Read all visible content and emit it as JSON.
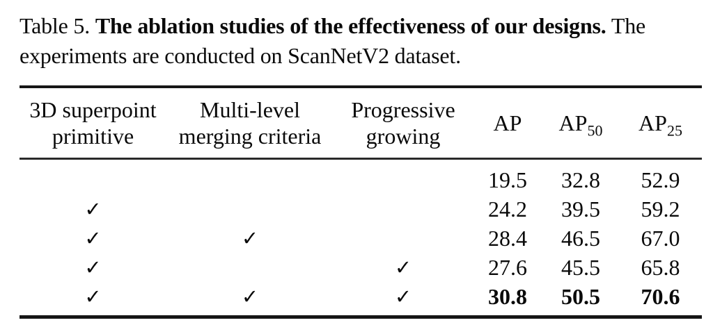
{
  "caption": {
    "label": "Table 5. ",
    "title_bold": "The ablation studies of the effectiveness of our designs.",
    "line2": "The experiments are conducted on ScanNetV2 dataset."
  },
  "table": {
    "check_glyph": "✓",
    "columns": [
      {
        "line1": "3D superpoint",
        "line2": "primitive"
      },
      {
        "line1": "Multi-level",
        "line2": "merging criteria"
      },
      {
        "line1": "Progressive",
        "line2": "growing"
      },
      {
        "line1": "AP",
        "line2": ""
      },
      {
        "base": "AP",
        "sub": "50"
      },
      {
        "base": "AP",
        "sub": "25"
      }
    ],
    "rows": [
      {
        "superpoint": false,
        "merging": false,
        "growing": false,
        "ap": "19.5",
        "ap50": "32.8",
        "ap25": "52.9",
        "bold": false
      },
      {
        "superpoint": true,
        "merging": false,
        "growing": false,
        "ap": "24.2",
        "ap50": "39.5",
        "ap25": "59.2",
        "bold": false
      },
      {
        "superpoint": true,
        "merging": true,
        "growing": false,
        "ap": "28.4",
        "ap50": "46.5",
        "ap25": "67.0",
        "bold": false
      },
      {
        "superpoint": true,
        "merging": false,
        "growing": true,
        "ap": "27.6",
        "ap50": "45.5",
        "ap25": "65.8",
        "bold": false
      },
      {
        "superpoint": true,
        "merging": true,
        "growing": true,
        "ap": "30.8",
        "ap50": "50.5",
        "ap25": "70.6",
        "bold": true
      }
    ]
  }
}
